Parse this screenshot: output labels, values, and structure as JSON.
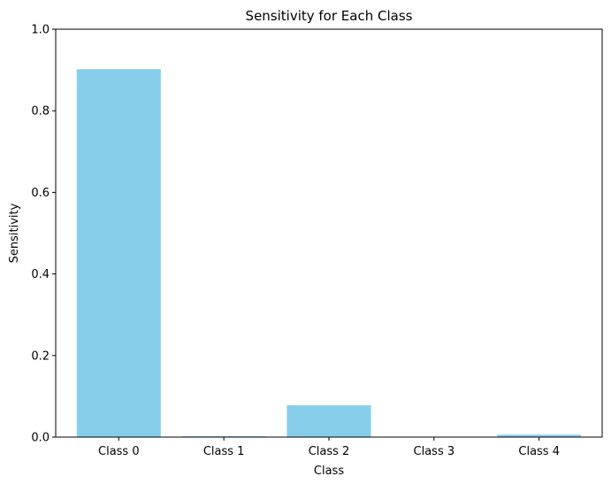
{
  "chart_data": {
    "type": "bar",
    "title": "Sensitivity for Each Class",
    "xlabel": "Class",
    "ylabel": "Sensitivity",
    "categories": [
      "Class 0",
      "Class 1",
      "Class 2",
      "Class 3",
      "Class 4"
    ],
    "values": [
      0.902,
      0.002,
      0.078,
      0.0,
      0.006
    ],
    "ylim": [
      0,
      1
    ],
    "yticks": [
      0.0,
      0.2,
      0.4,
      0.6,
      0.8,
      1.0
    ],
    "ytick_labels": [
      "0.0",
      "0.2",
      "0.4",
      "0.6",
      "0.8",
      "1.0"
    ],
    "grid": false,
    "legend": "none",
    "bar_color": "#87CEEB"
  }
}
